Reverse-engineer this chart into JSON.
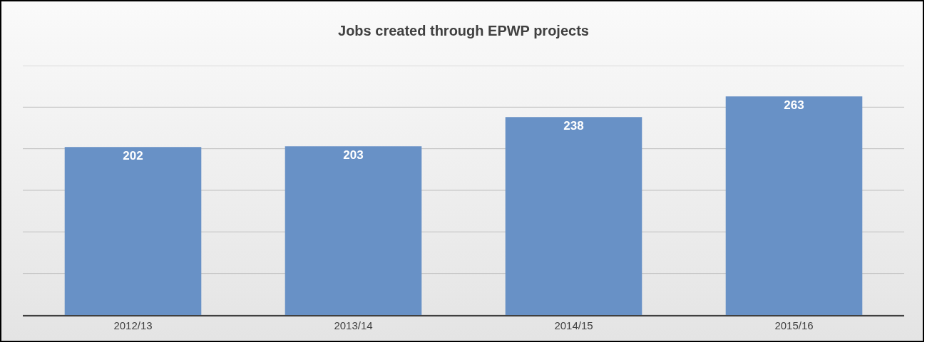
{
  "chart_data": {
    "type": "bar",
    "title": "Jobs created through EPWP projects",
    "categories": [
      "2012/13",
      "2013/14",
      "2014/15",
      "2015/16"
    ],
    "values": [
      202,
      203,
      238,
      263
    ],
    "color": "#6891c6",
    "ylim": [
      0,
      300
    ],
    "yticks": [
      {
        "value": 0,
        "label": null
      },
      {
        "value": 50,
        "label": null
      },
      {
        "value": 100,
        "label": null
      },
      {
        "value": 150,
        "label": null
      },
      {
        "value": 200,
        "label": null
      },
      {
        "value": 250,
        "label": null
      },
      {
        "value": 300,
        "label": null
      }
    ],
    "tick_labels": "x",
    "grid": "y",
    "data_labels": true,
    "legend": false
  }
}
